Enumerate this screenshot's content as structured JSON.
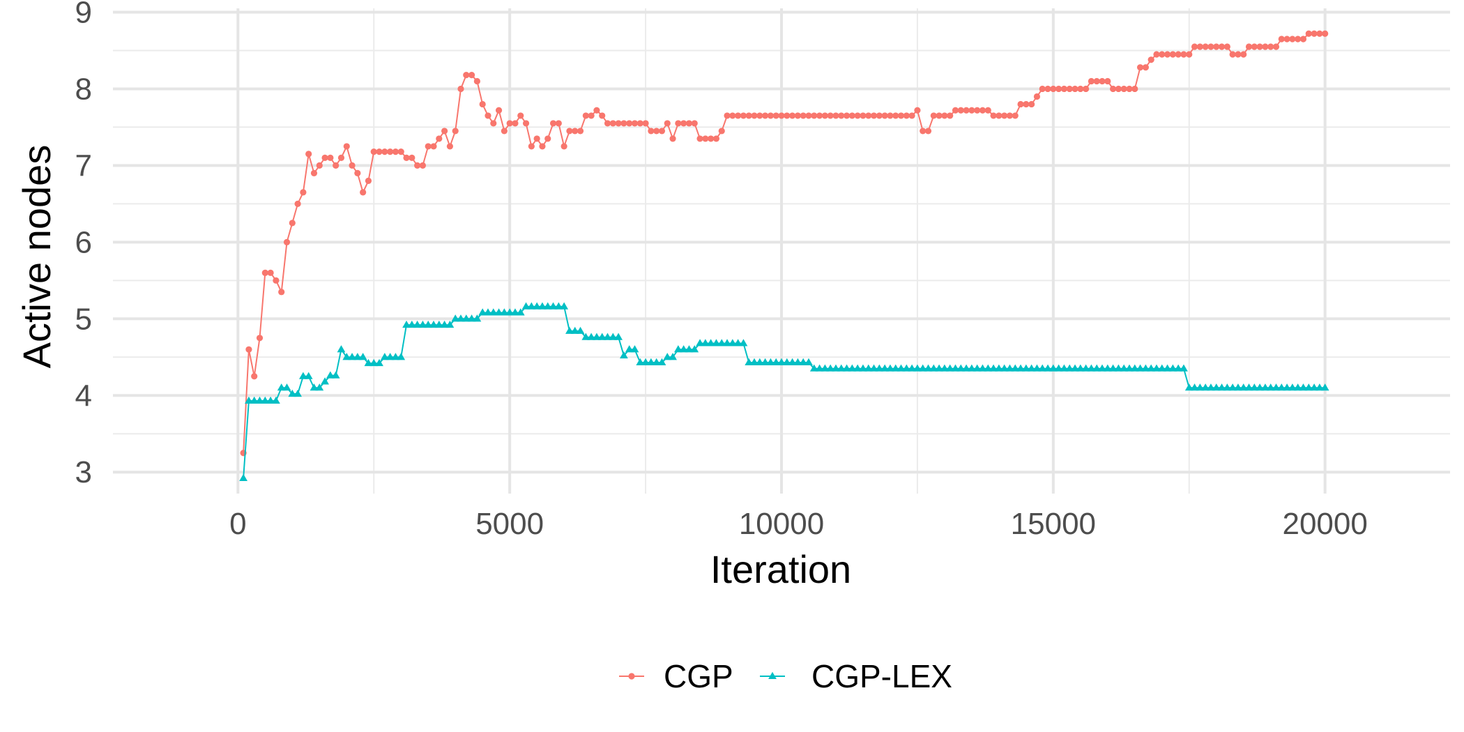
{
  "chart_data": {
    "type": "line",
    "title": "",
    "xlabel": "Iteration",
    "ylabel": "Active nodes",
    "xlim": [
      -2300,
      22300
    ],
    "ylim": [
      2.72,
      9.05
    ],
    "x_ticks": [
      0,
      5000,
      10000,
      15000,
      20000
    ],
    "x_tick_labels": [
      "0",
      "5000",
      "10000",
      "15000",
      "20000"
    ],
    "y_ticks": [
      3,
      4,
      5,
      6,
      7,
      8,
      9
    ],
    "y_tick_labels": [
      "3",
      "4",
      "5",
      "6",
      "7",
      "8",
      "9"
    ],
    "grid": true,
    "legend_position": "bottom",
    "series": [
      {
        "name": "CGP",
        "color": "#F8766D",
        "marker": "circle",
        "points": [
          [
            100,
            3.25
          ],
          [
            200,
            4.6
          ],
          [
            300,
            4.25
          ],
          [
            400,
            4.75
          ],
          [
            500,
            5.6
          ],
          [
            600,
            5.6
          ],
          [
            700,
            5.5
          ],
          [
            800,
            5.35
          ],
          [
            900,
            6.0
          ],
          [
            1000,
            6.25
          ],
          [
            1100,
            6.5
          ],
          [
            1200,
            6.65
          ],
          [
            1300,
            7.15
          ],
          [
            1400,
            6.9
          ],
          [
            1500,
            7.0
          ],
          [
            1600,
            7.1
          ],
          [
            1700,
            7.1
          ],
          [
            1800,
            7.0
          ],
          [
            1900,
            7.1
          ],
          [
            2000,
            7.25
          ],
          [
            2100,
            7.0
          ],
          [
            2200,
            6.9
          ],
          [
            2300,
            6.65
          ],
          [
            2400,
            6.8
          ],
          [
            2500,
            7.18
          ],
          [
            2600,
            7.18
          ],
          [
            2700,
            7.18
          ],
          [
            2800,
            7.18
          ],
          [
            2900,
            7.18
          ],
          [
            3000,
            7.18
          ],
          [
            3100,
            7.1
          ],
          [
            3200,
            7.1
          ],
          [
            3300,
            7.0
          ],
          [
            3400,
            7.0
          ],
          [
            3500,
            7.25
          ],
          [
            3600,
            7.25
          ],
          [
            3700,
            7.35
          ],
          [
            3800,
            7.45
          ],
          [
            3900,
            7.25
          ],
          [
            4000,
            7.45
          ],
          [
            4100,
            8.0
          ],
          [
            4200,
            8.18
          ],
          [
            4300,
            8.18
          ],
          [
            4400,
            8.1
          ],
          [
            4500,
            7.8
          ],
          [
            4600,
            7.65
          ],
          [
            4700,
            7.55
          ],
          [
            4800,
            7.72
          ],
          [
            4900,
            7.45
          ],
          [
            5000,
            7.55
          ],
          [
            5100,
            7.55
          ],
          [
            5200,
            7.65
          ],
          [
            5300,
            7.55
          ],
          [
            5400,
            7.25
          ],
          [
            5500,
            7.35
          ],
          [
            5600,
            7.25
          ],
          [
            5700,
            7.35
          ],
          [
            5800,
            7.55
          ],
          [
            5900,
            7.55
          ],
          [
            6000,
            7.25
          ],
          [
            6100,
            7.45
          ],
          [
            6200,
            7.45
          ],
          [
            6300,
            7.45
          ],
          [
            6400,
            7.65
          ],
          [
            6500,
            7.65
          ],
          [
            6600,
            7.72
          ],
          [
            6700,
            7.65
          ],
          [
            6800,
            7.55
          ],
          [
            6900,
            7.55
          ],
          [
            7000,
            7.55
          ],
          [
            7100,
            7.55
          ],
          [
            7200,
            7.55
          ],
          [
            7300,
            7.55
          ],
          [
            7400,
            7.55
          ],
          [
            7500,
            7.55
          ],
          [
            7600,
            7.45
          ],
          [
            7700,
            7.45
          ],
          [
            7800,
            7.45
          ],
          [
            7900,
            7.55
          ],
          [
            8000,
            7.35
          ],
          [
            8100,
            7.55
          ],
          [
            8200,
            7.55
          ],
          [
            8300,
            7.55
          ],
          [
            8400,
            7.55
          ],
          [
            8500,
            7.35
          ],
          [
            8600,
            7.35
          ],
          [
            8700,
            7.35
          ],
          [
            8800,
            7.35
          ],
          [
            8900,
            7.45
          ],
          [
            9000,
            7.65
          ],
          [
            12400,
            7.65
          ],
          [
            12500,
            7.72
          ],
          [
            12600,
            7.45
          ],
          [
            12700,
            7.45
          ],
          [
            12800,
            7.65
          ],
          [
            13100,
            7.65
          ],
          [
            13200,
            7.72
          ],
          [
            13800,
            7.72
          ],
          [
            13900,
            7.65
          ],
          [
            14300,
            7.65
          ],
          [
            14400,
            7.8
          ],
          [
            14600,
            7.8
          ],
          [
            14700,
            7.9
          ],
          [
            14800,
            8.0
          ],
          [
            15600,
            8.0
          ],
          [
            15700,
            8.1
          ],
          [
            16000,
            8.1
          ],
          [
            16100,
            8.0
          ],
          [
            16500,
            8.0
          ],
          [
            16600,
            8.28
          ],
          [
            16700,
            8.28
          ],
          [
            16800,
            8.38
          ],
          [
            16900,
            8.45
          ],
          [
            17500,
            8.45
          ],
          [
            17600,
            8.55
          ],
          [
            18200,
            8.55
          ],
          [
            18300,
            8.45
          ],
          [
            18500,
            8.45
          ],
          [
            18600,
            8.55
          ],
          [
            19100,
            8.55
          ],
          [
            19200,
            8.65
          ],
          [
            19600,
            8.65
          ],
          [
            19700,
            8.72
          ],
          [
            20000,
            8.72
          ]
        ]
      },
      {
        "name": "CGP-LEX",
        "color": "#00BFC4",
        "marker": "triangle",
        "points": [
          [
            100,
            2.92
          ],
          [
            200,
            3.93
          ],
          [
            700,
            3.93
          ],
          [
            800,
            4.1
          ],
          [
            900,
            4.1
          ],
          [
            1000,
            4.02
          ],
          [
            1100,
            4.02
          ],
          [
            1200,
            4.25
          ],
          [
            1300,
            4.25
          ],
          [
            1400,
            4.1
          ],
          [
            1500,
            4.1
          ],
          [
            1600,
            4.18
          ],
          [
            1700,
            4.26
          ],
          [
            1800,
            4.26
          ],
          [
            1900,
            4.6
          ],
          [
            2000,
            4.5
          ],
          [
            2300,
            4.5
          ],
          [
            2400,
            4.42
          ],
          [
            2600,
            4.42
          ],
          [
            2700,
            4.5
          ],
          [
            3000,
            4.5
          ],
          [
            3100,
            4.92
          ],
          [
            3900,
            4.92
          ],
          [
            4000,
            5.0
          ],
          [
            4400,
            5.0
          ],
          [
            4500,
            5.08
          ],
          [
            5200,
            5.08
          ],
          [
            5300,
            5.16
          ],
          [
            6000,
            5.16
          ],
          [
            6100,
            4.84
          ],
          [
            6300,
            4.84
          ],
          [
            6400,
            4.76
          ],
          [
            7000,
            4.76
          ],
          [
            7100,
            4.52
          ],
          [
            7200,
            4.6
          ],
          [
            7300,
            4.6
          ],
          [
            7400,
            4.43
          ],
          [
            7800,
            4.43
          ],
          [
            7900,
            4.5
          ],
          [
            8000,
            4.5
          ],
          [
            8100,
            4.6
          ],
          [
            8400,
            4.6
          ],
          [
            8500,
            4.68
          ],
          [
            9300,
            4.68
          ],
          [
            9400,
            4.43
          ],
          [
            10500,
            4.43
          ],
          [
            10600,
            4.35
          ],
          [
            17400,
            4.35
          ],
          [
            17500,
            4.1
          ],
          [
            20000,
            4.1
          ]
        ]
      }
    ]
  }
}
